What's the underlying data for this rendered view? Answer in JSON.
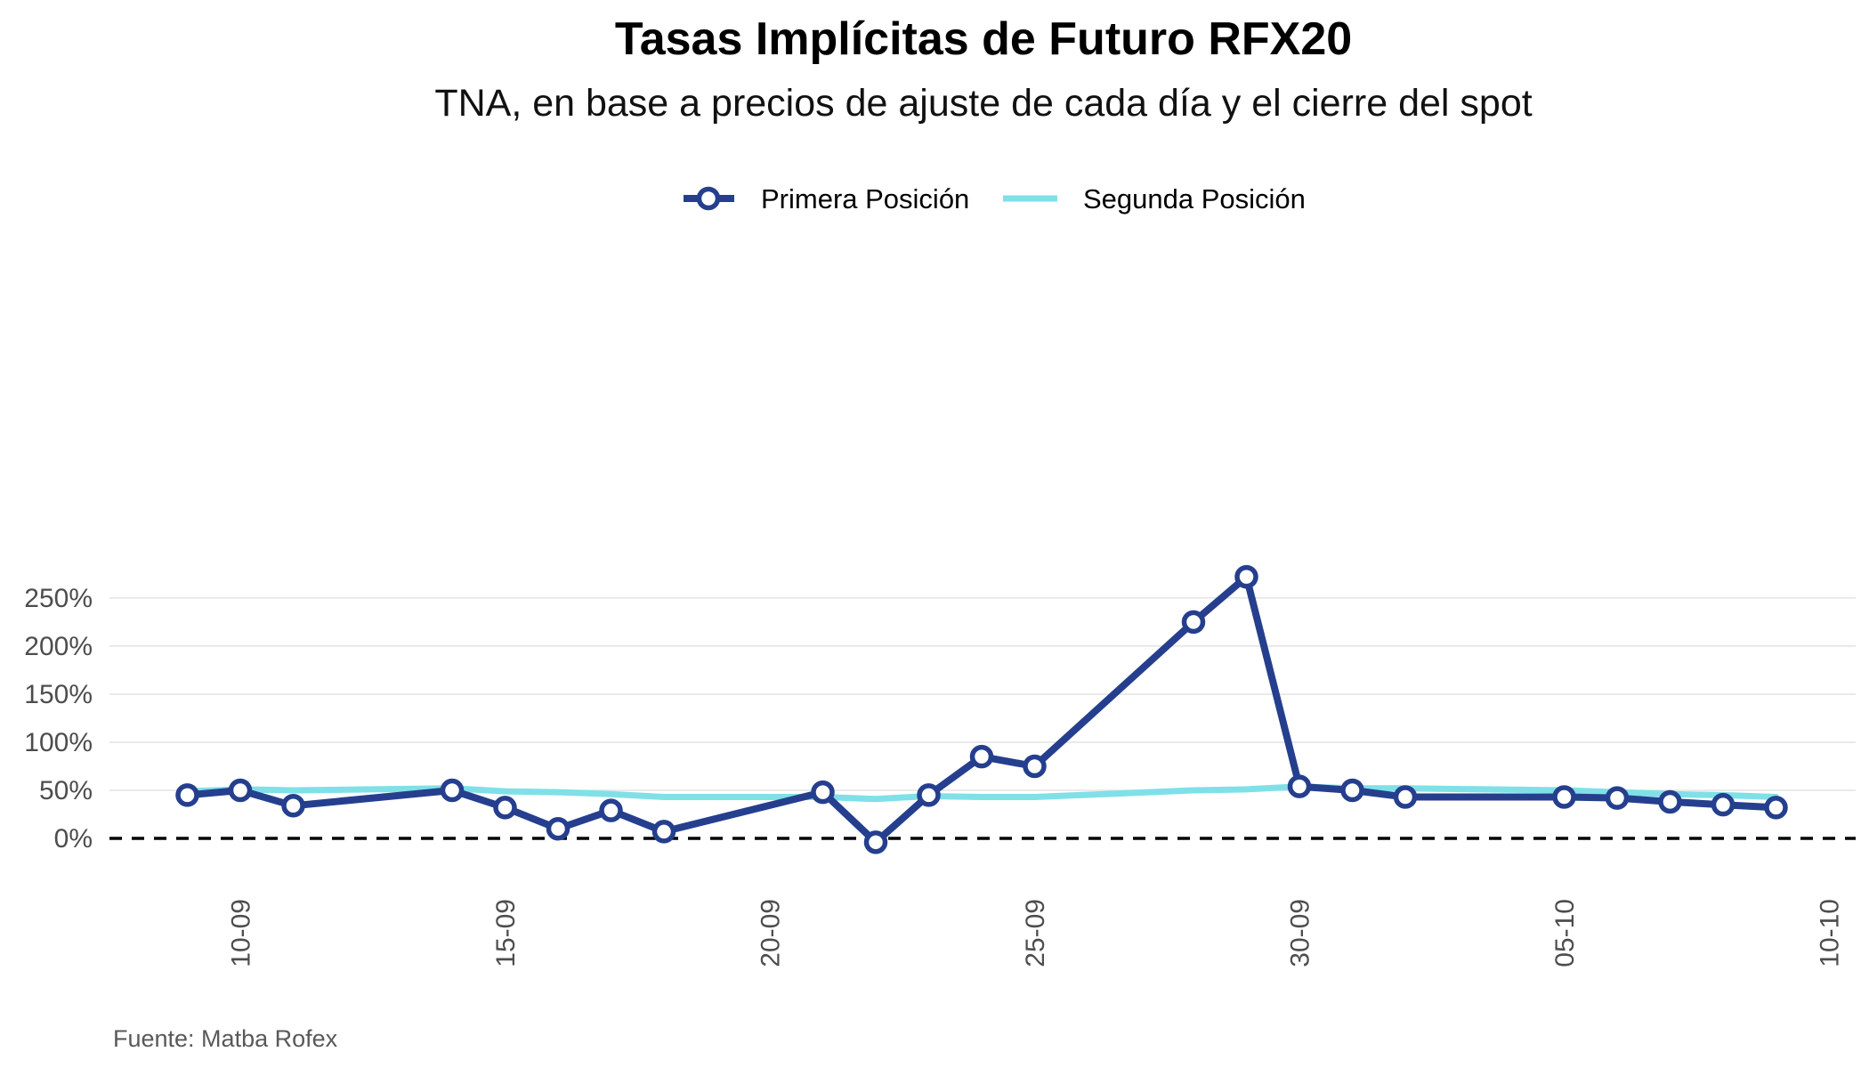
{
  "chart_data": {
    "type": "line",
    "title": "Tasas Implícitas de Futuro RFX20",
    "subtitle": "TNA, en base a precios de ajuste de cada día y el cierre del spot",
    "caption": "Fuente: Matba Rofex",
    "xlabel": "",
    "ylabel": "",
    "x_axis": {
      "type": "date",
      "range": [
        "2020-09-08",
        "2020-10-10"
      ],
      "tick_labels": [
        "10-09",
        "15-09",
        "20-09",
        "25-09",
        "30-09",
        "05-10",
        "10-10"
      ],
      "tick_dates": [
        "2020-09-10",
        "2020-09-15",
        "2020-09-20",
        "2020-09-25",
        "2020-09-30",
        "2020-10-05",
        "2020-10-10"
      ]
    },
    "y_axis": {
      "range": [
        -20,
        280
      ],
      "ticks": [
        0,
        50,
        100,
        150,
        200,
        250
      ],
      "tick_labels": [
        "0%",
        "50%",
        "100%",
        "150%",
        "200%",
        "250%"
      ],
      "unit": "%"
    },
    "reference_line": {
      "y": 0,
      "style": "dashed"
    },
    "grid": "horizontal",
    "legend": {
      "position": "top"
    },
    "series": [
      {
        "name": "Primera Posición",
        "color": "#253f8e",
        "markers": true,
        "points": [
          {
            "x": "2020-09-09",
            "y": 45
          },
          {
            "x": "2020-09-10",
            "y": 50
          },
          {
            "x": "2020-09-11",
            "y": 34
          },
          {
            "x": "2020-09-14",
            "y": 50
          },
          {
            "x": "2020-09-15",
            "y": 32
          },
          {
            "x": "2020-09-16",
            "y": 10
          },
          {
            "x": "2020-09-17",
            "y": 29
          },
          {
            "x": "2020-09-18",
            "y": 7
          },
          {
            "x": "2020-09-21",
            "y": 48
          },
          {
            "x": "2020-09-22",
            "y": -4
          },
          {
            "x": "2020-09-23",
            "y": 45
          },
          {
            "x": "2020-09-24",
            "y": 85
          },
          {
            "x": "2020-09-25",
            "y": 75
          },
          {
            "x": "2020-09-28",
            "y": 225
          },
          {
            "x": "2020-09-29",
            "y": 272
          },
          {
            "x": "2020-09-30",
            "y": 54
          },
          {
            "x": "2020-10-01",
            "y": 50
          },
          {
            "x": "2020-10-02",
            "y": 43
          },
          {
            "x": "2020-10-05",
            "y": 43
          },
          {
            "x": "2020-10-06",
            "y": 42
          },
          {
            "x": "2020-10-07",
            "y": 38
          },
          {
            "x": "2020-10-08",
            "y": 35
          },
          {
            "x": "2020-10-09",
            "y": 32
          }
        ]
      },
      {
        "name": "Segunda Posición",
        "color": "#7fe0e8",
        "markers": false,
        "points": [
          {
            "x": "2020-09-09",
            "y": 49
          },
          {
            "x": "2020-09-10",
            "y": 51
          },
          {
            "x": "2020-09-11",
            "y": 50
          },
          {
            "x": "2020-09-14",
            "y": 52
          },
          {
            "x": "2020-09-15",
            "y": 49
          },
          {
            "x": "2020-09-16",
            "y": 48
          },
          {
            "x": "2020-09-17",
            "y": 46
          },
          {
            "x": "2020-09-18",
            "y": 43
          },
          {
            "x": "2020-09-21",
            "y": 43
          },
          {
            "x": "2020-09-22",
            "y": 41
          },
          {
            "x": "2020-09-23",
            "y": 44
          },
          {
            "x": "2020-09-24",
            "y": 43
          },
          {
            "x": "2020-09-25",
            "y": 43
          },
          {
            "x": "2020-09-28",
            "y": 50
          },
          {
            "x": "2020-09-29",
            "y": 51
          },
          {
            "x": "2020-09-30",
            "y": 54
          },
          {
            "x": "2020-10-01",
            "y": 52
          },
          {
            "x": "2020-10-02",
            "y": 52
          },
          {
            "x": "2020-10-05",
            "y": 50
          },
          {
            "x": "2020-10-06",
            "y": 48
          },
          {
            "x": "2020-10-07",
            "y": 46
          },
          {
            "x": "2020-10-08",
            "y": 45
          },
          {
            "x": "2020-10-09",
            "y": 43
          }
        ]
      }
    ]
  }
}
